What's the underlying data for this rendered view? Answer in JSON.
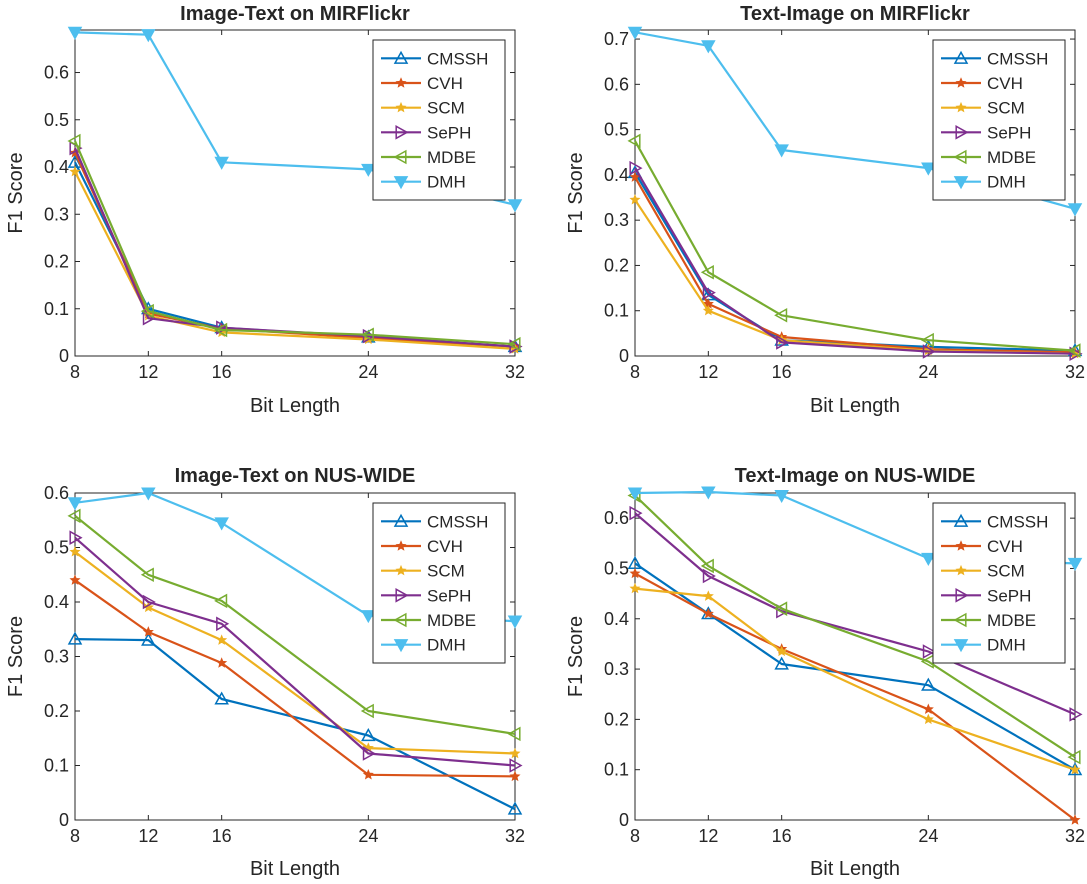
{
  "colors": {
    "CMSSH": "#0072bd",
    "CVH": "#d95319",
    "SCM": "#edb120",
    "SePH": "#7e2f8e",
    "MDBE": "#77ac30",
    "DMH": "#4dbeee"
  },
  "markers": {
    "CMSSH": "triangle-up",
    "CVH": "star",
    "SCM": "star",
    "SePH": "triangle-right",
    "MDBE": "triangle-left",
    "DMH": "triangle-down"
  },
  "chart_data": [
    {
      "type": "line",
      "title": "Image-Text on MIRFlickr",
      "xlabel": "Bit Length",
      "ylabel": "F1 Score",
      "x": [
        8,
        12,
        16,
        24,
        32
      ],
      "xlim": [
        8,
        32
      ],
      "ylim": [
        0,
        0.69
      ],
      "yticks": [
        0,
        0.1,
        0.2,
        0.3,
        0.4,
        0.5,
        0.6
      ],
      "ytick_labels": [
        "0",
        "0.1",
        "0.2",
        "0.3",
        "0.4",
        "0.5",
        "0.6"
      ],
      "xtick_labels": [
        "8",
        "12",
        "16",
        "24",
        "32"
      ],
      "legend": "top-right",
      "grid": false,
      "series": [
        {
          "name": "CMSSH",
          "values": [
            0.41,
            0.1,
            0.06,
            0.04,
            0.02
          ]
        },
        {
          "name": "CVH",
          "values": [
            0.43,
            0.09,
            0.058,
            0.038,
            0.02
          ]
        },
        {
          "name": "SCM",
          "values": [
            0.39,
            0.085,
            0.05,
            0.035,
            0.015
          ]
        },
        {
          "name": "SePH",
          "values": [
            0.44,
            0.08,
            0.06,
            0.042,
            0.02
          ]
        },
        {
          "name": "MDBE",
          "values": [
            0.455,
            0.095,
            0.055,
            0.045,
            0.025
          ]
        },
        {
          "name": "DMH",
          "values": [
            0.685,
            0.68,
            0.41,
            0.395,
            0.32
          ]
        }
      ]
    },
    {
      "type": "line",
      "title": "Text-Image on MIRFlickr",
      "xlabel": "Bit Length",
      "ylabel": "F1 Score",
      "x": [
        8,
        12,
        16,
        24,
        32
      ],
      "xlim": [
        8,
        32
      ],
      "ylim": [
        0,
        0.72
      ],
      "yticks": [
        0,
        0.1,
        0.2,
        0.3,
        0.4,
        0.5,
        0.6,
        0.7
      ],
      "ytick_labels": [
        "0",
        "0.1",
        "0.2",
        "0.3",
        "0.4",
        "0.5",
        "0.6",
        "0.7"
      ],
      "xtick_labels": [
        "8",
        "12",
        "16",
        "24",
        "32"
      ],
      "legend": "top-right",
      "grid": false,
      "series": [
        {
          "name": "CMSSH",
          "values": [
            0.405,
            0.135,
            0.035,
            0.02,
            0.012
          ]
        },
        {
          "name": "CVH",
          "values": [
            0.395,
            0.115,
            0.042,
            0.015,
            0.008
          ]
        },
        {
          "name": "SCM",
          "values": [
            0.345,
            0.1,
            0.035,
            0.012,
            0.005
          ]
        },
        {
          "name": "SePH",
          "values": [
            0.415,
            0.14,
            0.03,
            0.01,
            0.005
          ]
        },
        {
          "name": "MDBE",
          "values": [
            0.475,
            0.185,
            0.09,
            0.035,
            0.012
          ]
        },
        {
          "name": "DMH",
          "values": [
            0.715,
            0.685,
            0.455,
            0.415,
            0.325
          ]
        }
      ]
    },
    {
      "type": "line",
      "title": "Image-Text on NUS-WIDE",
      "xlabel": "Bit Length",
      "ylabel": "F1 Score",
      "x": [
        8,
        12,
        16,
        24,
        32
      ],
      "xlim": [
        8,
        32
      ],
      "ylim": [
        0,
        0.6
      ],
      "yticks": [
        0,
        0.1,
        0.2,
        0.3,
        0.4,
        0.5,
        0.6
      ],
      "ytick_labels": [
        "0",
        "0.1",
        "0.2",
        "0.3",
        "0.4",
        "0.5",
        "0.6"
      ],
      "xtick_labels": [
        "8",
        "12",
        "16",
        "24",
        "32"
      ],
      "legend": "top-right",
      "grid": false,
      "series": [
        {
          "name": "CMSSH",
          "values": [
            0.332,
            0.33,
            0.222,
            0.155,
            0.02
          ]
        },
        {
          "name": "CVH",
          "values": [
            0.44,
            0.345,
            0.288,
            0.083,
            0.08
          ]
        },
        {
          "name": "SCM",
          "values": [
            0.492,
            0.39,
            0.33,
            0.132,
            0.122
          ]
        },
        {
          "name": "SePH",
          "values": [
            0.518,
            0.4,
            0.36,
            0.122,
            0.1
          ]
        },
        {
          "name": "MDBE",
          "values": [
            0.558,
            0.45,
            0.402,
            0.2,
            0.158
          ]
        },
        {
          "name": "DMH",
          "values": [
            0.582,
            0.6,
            0.545,
            0.375,
            0.365
          ]
        }
      ]
    },
    {
      "type": "line",
      "title": "Text-Image on NUS-WIDE",
      "xlabel": "Bit Length",
      "ylabel": "F1 Score",
      "x": [
        8,
        12,
        16,
        24,
        32
      ],
      "xlim": [
        8,
        32
      ],
      "ylim": [
        0,
        0.65
      ],
      "yticks": [
        0,
        0.1,
        0.2,
        0.3,
        0.4,
        0.5,
        0.6
      ],
      "ytick_labels": [
        "0",
        "0.1",
        "0.2",
        "0.3",
        "0.4",
        "0.5",
        "0.6"
      ],
      "xtick_labels": [
        "8",
        "12",
        "16",
        "24",
        "32"
      ],
      "legend": "top-right",
      "grid": false,
      "series": [
        {
          "name": "CMSSH",
          "values": [
            0.51,
            0.41,
            0.31,
            0.268,
            0.1
          ]
        },
        {
          "name": "CVH",
          "values": [
            0.49,
            0.41,
            0.34,
            0.22,
            0.0
          ]
        },
        {
          "name": "SCM",
          "values": [
            0.46,
            0.445,
            0.335,
            0.2,
            0.1
          ]
        },
        {
          "name": "SePH",
          "values": [
            0.61,
            0.485,
            0.415,
            0.335,
            0.21
          ]
        },
        {
          "name": "MDBE",
          "values": [
            0.645,
            0.505,
            0.42,
            0.315,
            0.125
          ]
        },
        {
          "name": "DMH",
          "values": [
            0.65,
            0.652,
            0.645,
            0.52,
            0.51
          ]
        }
      ]
    }
  ]
}
